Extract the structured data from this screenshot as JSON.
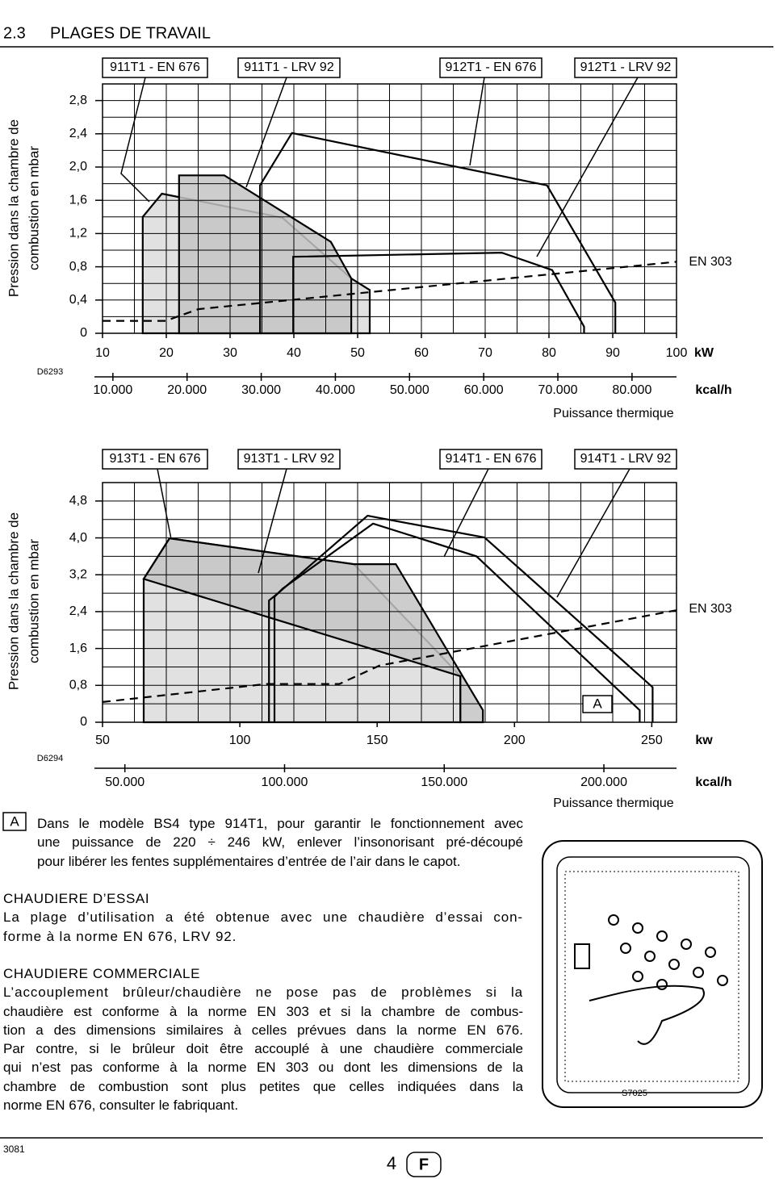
{
  "header": {
    "section": "2.3",
    "title": "PLAGES DE TRAVAIL"
  },
  "chart_data": [
    {
      "type": "line",
      "code": "D6293",
      "y_label": [
        "Pression dans la chambre de",
        "combustion en mbar"
      ],
      "x_unit": "kW",
      "x2_unit": "kcal/h",
      "x_label": "Puissance thermique",
      "xlim": [
        10,
        100
      ],
      "xticks": [
        10,
        20,
        30,
        40,
        50,
        60,
        70,
        80,
        90,
        100
      ],
      "x2lim": [
        8600,
        86000
      ],
      "x2ticks": [
        {
          "value": 10000,
          "label": "10.000"
        },
        {
          "value": 20000,
          "label": "20.000"
        },
        {
          "value": 30000,
          "label": "30.000"
        },
        {
          "value": 40000,
          "label": "40.000"
        },
        {
          "value": 50000,
          "label": "50.000"
        },
        {
          "value": 60000,
          "label": "60.000"
        },
        {
          "value": 70000,
          "label": "70.000"
        },
        {
          "value": 80000,
          "label": "80.000"
        }
      ],
      "ylim": [
        0,
        3.0
      ],
      "yticks": [
        0,
        {
          "value": 0.4,
          "label": "0,4"
        },
        {
          "value": 0.8,
          "label": "0,8"
        },
        {
          "value": 1.2,
          "label": "1,2"
        },
        {
          "value": 1.6,
          "label": "1,6"
        },
        {
          "value": 2.0,
          "label": "2,0"
        },
        {
          "value": 2.4,
          "label": "2,4"
        },
        {
          "value": 2.8,
          "label": "2,8"
        }
      ],
      "grid": true,
      "series": [
        {
          "name": "911T1 - EN 676",
          "color": "#000000",
          "fill": "#dcdcdc",
          "x": [
            16.3,
            16.3,
            19.3,
            38.2,
            49.0,
            51.9,
            51.9
          ],
          "values": [
            0,
            1.4,
            1.68,
            1.39,
            0.66,
            0.52,
            0
          ]
        },
        {
          "name": "911T1 - LRV 92",
          "color": "#000000",
          "fill": "#c4c4c4",
          "x": [
            22.0,
            22.0,
            29.1,
            45.8,
            49.0,
            49.0
          ],
          "values": [
            0,
            1.9,
            1.9,
            1.1,
            0.66,
            0
          ]
        },
        {
          "name": "912T1 - EN 676",
          "color": "#000000",
          "x": [
            39.9,
            39.9,
            72.6,
            80.5,
            85.5,
            85.5
          ],
          "values": [
            0,
            0.92,
            0.97,
            0.76,
            0.08,
            0
          ]
        },
        {
          "name": "912T1 - LRV 92",
          "color": "#000000",
          "x": [
            34.7,
            34.7,
            39.7,
            79.7,
            90.4,
            90.4
          ],
          "values": [
            0,
            1.78,
            2.41,
            1.78,
            0.37,
            0
          ]
        },
        {
          "name": "EN 303",
          "color": "#000000",
          "line_style": "dashed",
          "x": [
            10,
            19.9,
            25,
            100
          ],
          "values": [
            0.15,
            0.15,
            0.29,
            0.86
          ]
        }
      ]
    },
    {
      "type": "line",
      "code": "D6294",
      "y_label": [
        "Pression dans la chambre de",
        "combustion en mbar"
      ],
      "x_unit": "kw",
      "x2_unit": "kcal/h",
      "x_label": "Puissance thermique",
      "annotation": "A",
      "xlim": [
        50,
        259
      ],
      "xticks": [
        50,
        100,
        150,
        200,
        250
      ],
      "x2lim": [
        43000,
        222740
      ],
      "x2ticks": [
        {
          "value": 50000,
          "label": "50.000"
        },
        {
          "value": 100000,
          "label": "100.000"
        },
        {
          "value": 150000,
          "label": "150.000"
        },
        {
          "value": 200000,
          "label": "200.000"
        }
      ],
      "ylim": [
        0,
        5.2
      ],
      "yticks": [
        0,
        {
          "value": 0.8,
          "label": "0,8"
        },
        {
          "value": 1.6,
          "label": "1,6"
        },
        {
          "value": 2.4,
          "label": "2,4"
        },
        {
          "value": 3.2,
          "label": "3,2"
        },
        {
          "value": 4.0,
          "label": "4,0"
        },
        {
          "value": 4.8,
          "label": "4,8"
        }
      ],
      "grid": true,
      "series": [
        {
          "name": "913T1 - EN 676",
          "color": "#000000",
          "fill": "#dcdcdc",
          "x": [
            65,
            65,
            74.4,
            141.5,
            180.3,
            180.3
          ],
          "values": [
            0,
            3.11,
            3.99,
            3.43,
            1.0,
            0
          ]
        },
        {
          "name": "913T1 - LRV 92",
          "color": "#000000",
          "fill": "#c4c4c4",
          "x": [
            65,
            74.4,
            141.5,
            156.8,
            188.5,
            188.5,
            180.3,
            180.3
          ],
          "values": [
            3.11,
            3.99,
            3.43,
            3.43,
            0.26,
            0,
            0,
            1.0
          ]
        },
        {
          "name": "914T1 - EN 676",
          "color": "#000000",
          "x": [
            112.6,
            112.6,
            115.6,
            148.5,
            186.2,
            245.6,
            245.6
          ],
          "values": [
            0,
            2.72,
            2.9,
            4.31,
            3.6,
            0.26,
            0
          ]
        },
        {
          "name": "914T1 - LRV 92",
          "color": "#000000",
          "x": [
            110.6,
            110.6,
            114.1,
            146.5,
            189.1,
            250.3,
            250.3
          ],
          "values": [
            0,
            2.64,
            2.81,
            4.48,
            4.01,
            0.76,
            0
          ]
        },
        {
          "name": "EN 303",
          "color": "#000000",
          "line_style": "dashed",
          "x": [
            50,
            109.7,
            136.2,
            150.9,
            259
          ],
          "values": [
            0.44,
            0.83,
            0.83,
            1.23,
            2.43
          ]
        }
      ]
    }
  ],
  "note": {
    "marker": "A",
    "lines": [
      "Dans le modèle BS4 type 914T1, pour garantir le fonctionnement avec",
      "une puissance de 220 ÷ 246 kW, enlever l’insonorisant pré-découpé",
      "pour libérer les fentes supplémentaires d’entrée de l’air dans le capot."
    ]
  },
  "test_boiler": {
    "title": "CHAUDIERE D’ESSAI",
    "lines": [
      "La plage d’utilisation a été obtenue avec une chaudière d’essai con-",
      "forme à la norme EN 676, LRV 92."
    ]
  },
  "commercial_boiler": {
    "title": "CHAUDIERE COMMERCIALE",
    "lines": [
      "L’accouplement brûleur/chaudière ne pose pas de problèmes si la",
      "chaudière est conforme à la norme EN 303 et si la chambre de combus-",
      "tion a des dimensions similaires à celles prévues dans la norme EN 676.",
      "Par contre, si le brûleur doit être accouplé à une chaudière commerciale",
      "qui n’est pas conforme à la norme  EN 303 ou dont les dimensions de la",
      "chambre de combustion sont plus petites que celles indiquées dans la",
      "norme EN 676, consulter le fabriquant."
    ]
  },
  "figure": {
    "code": "S7025"
  },
  "footer": {
    "doc": "3081",
    "page": "4",
    "language": "F"
  }
}
